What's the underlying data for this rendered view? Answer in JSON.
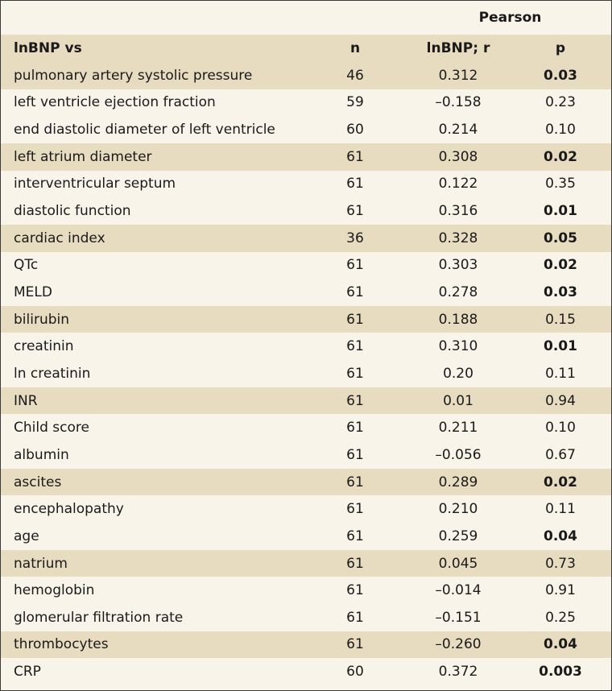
{
  "header": {
    "group_label": "Pearson",
    "col_variable": "lnBNP vs",
    "col_n": "n",
    "col_r": "lnBNP; r",
    "col_p": "p"
  },
  "rows": [
    {
      "variable": "pulmonary artery systolic pressure",
      "n": "46",
      "r": "0.312",
      "p": "0.03",
      "significant": true
    },
    {
      "variable": "left ventricle ejection fraction",
      "n": "59",
      "r": "–0.158",
      "p": "0.23",
      "significant": false
    },
    {
      "variable": "end diastolic diameter of left ventricle",
      "n": "60",
      "r": "0.214",
      "p": "0.10",
      "significant": false
    },
    {
      "variable": "left atrium diameter",
      "n": "61",
      "r": "0.308",
      "p": "0.02",
      "significant": true
    },
    {
      "variable": "interventricular septum",
      "n": "61",
      "r": "0.122",
      "p": "0.35",
      "significant": false
    },
    {
      "variable": "diastolic function",
      "n": "61",
      "r": "0.316",
      "p": "0.01",
      "significant": true
    },
    {
      "variable": "cardiac index",
      "n": "36",
      "r": "0.328",
      "p": "0.05",
      "significant": true
    },
    {
      "variable": "QTc",
      "n": "61",
      "r": "0.303",
      "p": "0.02",
      "significant": true
    },
    {
      "variable": "MELD",
      "n": "61",
      "r": "0.278",
      "p": "0.03",
      "significant": true
    },
    {
      "variable": "bilirubin",
      "n": "61",
      "r": "0.188",
      "p": "0.15",
      "significant": false
    },
    {
      "variable": "creatinin",
      "n": "61",
      "r": "0.310",
      "p": "0.01",
      "significant": true
    },
    {
      "variable": "ln creatinin",
      "n": "61",
      "r": "0.20",
      "p": "0.11",
      "significant": false
    },
    {
      "variable": "INR",
      "n": "61",
      "r": "0.01",
      "p": "0.94",
      "significant": false
    },
    {
      "variable": "Child score",
      "n": "61",
      "r": "0.211",
      "p": "0.10",
      "significant": false
    },
    {
      "variable": "albumin",
      "n": "61",
      "r": "–0.056",
      "p": "0.67",
      "significant": false
    },
    {
      "variable": "ascites",
      "n": "61",
      "r": "0.289",
      "p": "0.02",
      "significant": true
    },
    {
      "variable": "encephalopathy",
      "n": "61",
      "r": "0.210",
      "p": "0.11",
      "significant": false
    },
    {
      "variable": "age",
      "n": "61",
      "r": "0.259",
      "p": "0.04",
      "significant": true
    },
    {
      "variable": "natrium",
      "n": "61",
      "r": "0.045",
      "p": "0.73",
      "significant": false
    },
    {
      "variable": "hemoglobin",
      "n": "61",
      "r": "–0.014",
      "p": "0.91",
      "significant": false
    },
    {
      "variable": "glomerular filtration rate",
      "n": "61",
      "r": "–0.151",
      "p": "0.25",
      "significant": false
    },
    {
      "variable": "thrombocytes",
      "n": "61",
      "r": "–0.260",
      "p": "0.04",
      "significant": true
    },
    {
      "variable": "CRP",
      "n": "60",
      "r": "0.372",
      "p": "0.003",
      "significant": true
    }
  ]
}
